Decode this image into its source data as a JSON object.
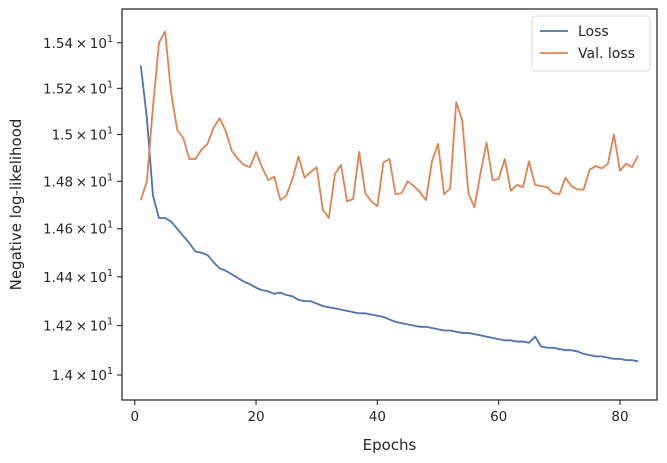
{
  "chart_data": {
    "type": "line",
    "title": "",
    "xlabel": "Epochs",
    "ylabel": "Negative log-likelihood",
    "yscale": "log",
    "xlim": [
      -2.1,
      86.1
    ],
    "ylim": [
      13.9,
      15.55
    ],
    "x_ticks": [
      0,
      20,
      40,
      60,
      80
    ],
    "x_tick_labels": [
      "0",
      "20",
      "40",
      "60",
      "80"
    ],
    "y_ticks": [
      14.0,
      14.2,
      14.4,
      14.6,
      14.8,
      15.0,
      15.2,
      15.4
    ],
    "y_tick_labels": [
      {
        "mantissa": "1.4",
        "exp": "1"
      },
      {
        "mantissa": "1.42",
        "exp": "1"
      },
      {
        "mantissa": "1.44",
        "exp": "1"
      },
      {
        "mantissa": "1.46",
        "exp": "1"
      },
      {
        "mantissa": "1.48",
        "exp": "1"
      },
      {
        "mantissa": "1.5",
        "exp": "1"
      },
      {
        "mantissa": "1.52",
        "exp": "1"
      },
      {
        "mantissa": "1.54",
        "exp": "1"
      }
    ],
    "tick_times": "×",
    "tick_base": "10",
    "grid": false,
    "legend_position": "top-right",
    "series": [
      {
        "name": "Loss",
        "color": "#4c72b0",
        "x": [
          1,
          2,
          3,
          4,
          5,
          6,
          7,
          8,
          9,
          10,
          11,
          12,
          13,
          14,
          15,
          16,
          17,
          18,
          19,
          20,
          21,
          22,
          23,
          24,
          25,
          26,
          27,
          28,
          29,
          30,
          31,
          32,
          33,
          34,
          35,
          36,
          37,
          38,
          39,
          40,
          41,
          42,
          43,
          44,
          45,
          46,
          47,
          48,
          49,
          50,
          51,
          52,
          53,
          54,
          55,
          56,
          57,
          58,
          59,
          60,
          61,
          62,
          63,
          64,
          65,
          66,
          67,
          68,
          69,
          70,
          71,
          72,
          73,
          74,
          75,
          76,
          77,
          78,
          79,
          80,
          81,
          82,
          83
        ],
        "y": [
          15.3,
          15.07,
          14.74,
          14.645,
          14.645,
          14.63,
          14.6,
          14.57,
          14.54,
          14.505,
          14.5,
          14.49,
          14.46,
          14.435,
          14.425,
          14.41,
          14.395,
          14.38,
          14.37,
          14.355,
          14.345,
          14.34,
          14.33,
          14.335,
          14.325,
          14.32,
          14.305,
          14.3,
          14.3,
          14.29,
          14.28,
          14.275,
          14.27,
          14.265,
          14.26,
          14.255,
          14.25,
          14.25,
          14.245,
          14.24,
          14.235,
          14.225,
          14.215,
          14.21,
          14.205,
          14.2,
          14.195,
          14.195,
          14.19,
          14.185,
          14.18,
          14.18,
          14.175,
          14.17,
          14.17,
          14.165,
          14.16,
          14.155,
          14.15,
          14.145,
          14.14,
          14.14,
          14.135,
          14.135,
          14.13,
          14.155,
          14.115,
          14.11,
          14.11,
          14.105,
          14.1,
          14.1,
          14.095,
          14.085,
          14.08,
          14.075,
          14.075,
          14.07,
          14.065,
          14.065,
          14.06,
          14.06,
          14.055
        ]
      },
      {
        "name": "Val. loss",
        "color": "#dd8452",
        "x": [
          1,
          2,
          3,
          4,
          5,
          6,
          7,
          8,
          9,
          10,
          11,
          12,
          13,
          14,
          15,
          16,
          17,
          18,
          19,
          20,
          21,
          22,
          23,
          24,
          25,
          26,
          27,
          28,
          29,
          30,
          31,
          32,
          33,
          34,
          35,
          36,
          37,
          38,
          39,
          40,
          41,
          42,
          43,
          44,
          45,
          46,
          47,
          48,
          49,
          50,
          51,
          52,
          53,
          54,
          55,
          56,
          57,
          58,
          59,
          60,
          61,
          62,
          63,
          64,
          65,
          66,
          67,
          68,
          69,
          70,
          71,
          72,
          73,
          74,
          75,
          76,
          77,
          78,
          79,
          80,
          81,
          82,
          83
        ],
        "y": [
          14.72,
          14.8,
          15.12,
          15.4,
          15.45,
          15.18,
          15.02,
          14.985,
          14.895,
          14.895,
          14.935,
          14.96,
          15.03,
          15.07,
          15.015,
          14.93,
          14.895,
          14.87,
          14.86,
          14.925,
          14.86,
          14.805,
          14.82,
          14.72,
          14.74,
          14.81,
          14.905,
          14.815,
          14.84,
          14.86,
          14.68,
          14.645,
          14.83,
          14.87,
          14.715,
          14.725,
          14.925,
          14.75,
          14.715,
          14.695,
          14.88,
          14.895,
          14.745,
          14.75,
          14.8,
          14.78,
          14.755,
          14.72,
          14.885,
          14.96,
          14.745,
          14.77,
          15.14,
          15.06,
          14.75,
          14.69,
          14.835,
          14.965,
          14.805,
          14.81,
          14.895,
          14.76,
          14.785,
          14.775,
          14.885,
          14.785,
          14.78,
          14.775,
          14.75,
          14.745,
          14.815,
          14.78,
          14.765,
          14.765,
          14.85,
          14.865,
          14.855,
          14.875,
          15.0,
          14.845,
          14.875,
          14.86,
          14.91
        ]
      }
    ]
  }
}
